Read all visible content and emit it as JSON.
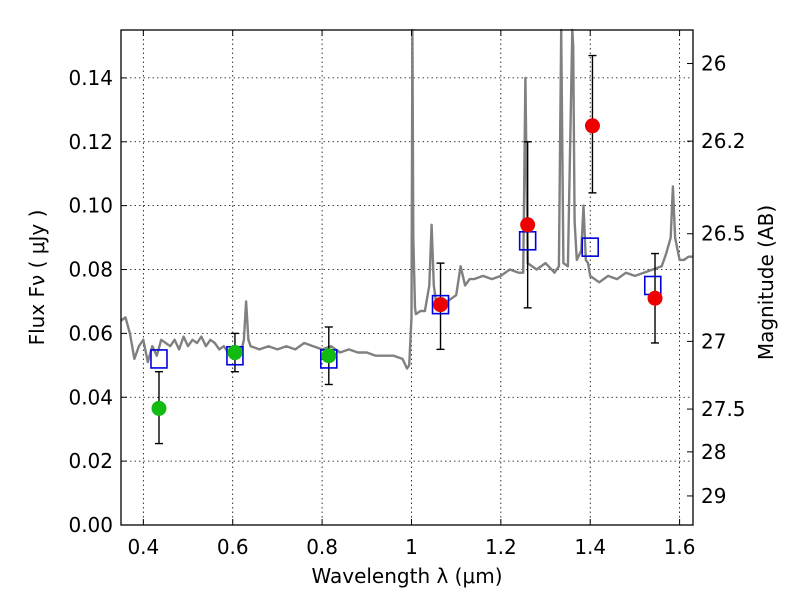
{
  "chart_data": {
    "type": "scatter",
    "xlabel": "Wavelength  λ (μm)",
    "ylabel": "Flux  Fν  ( μJy )",
    "y2label": "Magnitude (AB)",
    "xlim": [
      0.35,
      1.63
    ],
    "ylim": [
      0.0,
      0.155
    ],
    "grid": true,
    "x_ticks": [
      0.4,
      0.6,
      0.8,
      1.0,
      1.2,
      1.4,
      1.6
    ],
    "x_tick_labels": [
      "0.4",
      "0.6",
      "0.8",
      "1",
      "1.2",
      "1.4",
      "1.6"
    ],
    "y_ticks": [
      0.0,
      0.02,
      0.04,
      0.06,
      0.08,
      0.1,
      0.12,
      0.14
    ],
    "y_tick_labels": [
      "0.00",
      "0.02",
      "0.04",
      "0.06",
      "0.08",
      "0.10",
      "0.12",
      "0.14"
    ],
    "y2_ticks": [
      {
        "label": "26",
        "flux": 0.1445
      },
      {
        "label": "26.2",
        "flux": 0.1202
      },
      {
        "label": "26.5",
        "flux": 0.0912
      },
      {
        "label": "27",
        "flux": 0.0575
      },
      {
        "label": "27.5",
        "flux": 0.0363
      },
      {
        "label": "28",
        "flux": 0.0229
      },
      {
        "label": "29",
        "flux": 0.0091
      }
    ],
    "colors": {
      "model_line": "#808080",
      "model_points": "#0000dd",
      "green_points": "#11bb11",
      "red_points": "#ee0000",
      "errorbar": "#000000",
      "grid": "#000000"
    },
    "model_spectrum": {
      "x": [
        0.35,
        0.36,
        0.37,
        0.38,
        0.39,
        0.4,
        0.41,
        0.42,
        0.43,
        0.44,
        0.45,
        0.46,
        0.47,
        0.48,
        0.49,
        0.5,
        0.51,
        0.52,
        0.53,
        0.54,
        0.55,
        0.56,
        0.57,
        0.58,
        0.59,
        0.6,
        0.61,
        0.62,
        0.625,
        0.63,
        0.635,
        0.64,
        0.66,
        0.68,
        0.7,
        0.72,
        0.74,
        0.76,
        0.78,
        0.8,
        0.82,
        0.84,
        0.86,
        0.88,
        0.9,
        0.92,
        0.94,
        0.96,
        0.98,
        0.99,
        0.995,
        1.0,
        1.002,
        1.004,
        1.008,
        1.01,
        1.02,
        1.03,
        1.04,
        1.045,
        1.05,
        1.055,
        1.06,
        1.07,
        1.08,
        1.09,
        1.1,
        1.11,
        1.12,
        1.13,
        1.14,
        1.16,
        1.18,
        1.2,
        1.22,
        1.24,
        1.25,
        1.255,
        1.26,
        1.27,
        1.28,
        1.3,
        1.32,
        1.33,
        1.335,
        1.34,
        1.35,
        1.36,
        1.362,
        1.365,
        1.37,
        1.38,
        1.385,
        1.39,
        1.395,
        1.4,
        1.42,
        1.44,
        1.46,
        1.48,
        1.5,
        1.52,
        1.54,
        1.56,
        1.57,
        1.58,
        1.585,
        1.59,
        1.6,
        1.61,
        1.62,
        1.63
      ],
      "y": [
        0.064,
        0.065,
        0.06,
        0.052,
        0.056,
        0.058,
        0.051,
        0.056,
        0.053,
        0.058,
        0.057,
        0.056,
        0.058,
        0.055,
        0.059,
        0.056,
        0.058,
        0.057,
        0.059,
        0.056,
        0.058,
        0.057,
        0.055,
        0.056,
        0.054,
        0.055,
        0.054,
        0.055,
        0.058,
        0.07,
        0.058,
        0.056,
        0.055,
        0.056,
        0.055,
        0.056,
        0.055,
        0.057,
        0.056,
        0.055,
        0.056,
        0.054,
        0.055,
        0.054,
        0.054,
        0.053,
        0.053,
        0.053,
        0.052,
        0.049,
        0.05,
        0.065,
        0.155,
        0.09,
        0.068,
        0.066,
        0.067,
        0.067,
        0.075,
        0.094,
        0.075,
        0.07,
        0.07,
        0.071,
        0.07,
        0.071,
        0.072,
        0.081,
        0.075,
        0.077,
        0.077,
        0.078,
        0.077,
        0.078,
        0.08,
        0.079,
        0.079,
        0.14,
        0.082,
        0.081,
        0.08,
        0.082,
        0.079,
        0.081,
        0.155,
        0.082,
        0.081,
        0.155,
        0.15,
        0.095,
        0.083,
        0.086,
        0.1,
        0.083,
        0.082,
        0.078,
        0.076,
        0.078,
        0.077,
        0.079,
        0.078,
        0.079,
        0.08,
        0.081,
        0.085,
        0.09,
        0.106,
        0.09,
        0.083,
        0.083,
        0.084,
        0.084
      ]
    },
    "model_points": {
      "x": [
        0.435,
        0.605,
        0.815,
        1.065,
        1.26,
        1.4,
        1.54
      ],
      "y": [
        0.052,
        0.053,
        0.052,
        0.069,
        0.089,
        0.087,
        0.075
      ]
    },
    "green_points": {
      "x": [
        0.435,
        0.605,
        0.815
      ],
      "y": [
        0.0365,
        0.054,
        0.053
      ],
      "yerr_low": [
        0.0255,
        0.048,
        0.044
      ],
      "yerr_high": [
        0.048,
        0.06,
        0.062
      ]
    },
    "red_points": {
      "x": [
        1.065,
        1.26,
        1.405,
        1.545
      ],
      "y": [
        0.069,
        0.094,
        0.125,
        0.071
      ],
      "yerr_low": [
        0.055,
        0.068,
        0.104,
        0.057
      ],
      "yerr_high": [
        0.082,
        0.12,
        0.147,
        0.085
      ]
    }
  }
}
